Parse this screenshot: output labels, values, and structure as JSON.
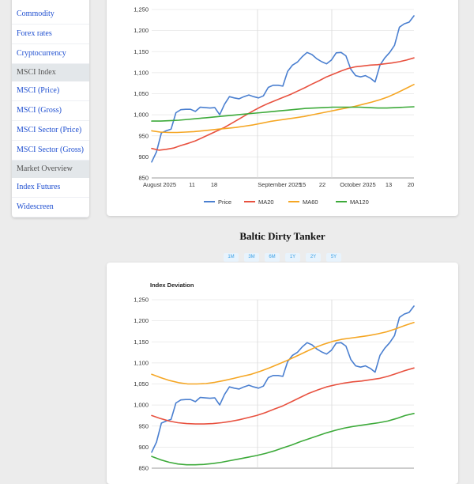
{
  "sidebar": {
    "items": [
      {
        "type": "link",
        "label": "Commodity"
      },
      {
        "type": "link",
        "label": "Forex rates"
      },
      {
        "type": "link",
        "label": "Cryptocurrency"
      },
      {
        "type": "header",
        "label": "MSCI Index"
      },
      {
        "type": "link",
        "label": "MSCI (Price)"
      },
      {
        "type": "link",
        "label": "MSCI (Gross)"
      },
      {
        "type": "link",
        "label": "MSCI Sector (Price)"
      },
      {
        "type": "link",
        "label": "MSCI Sector (Gross)"
      },
      {
        "type": "header",
        "label": "Market Overview"
      },
      {
        "type": "link",
        "label": "Index Futures"
      },
      {
        "type": "link",
        "label": "Widescreen"
      }
    ]
  },
  "section": {
    "title": "Baltic Dirty Tanker",
    "range_buttons": [
      "1M",
      "3M",
      "6M",
      "1Y",
      "2Y",
      "5Y"
    ]
  },
  "colors": {
    "price": "#4a7fd0",
    "ma20": "#e8513f",
    "ma60": "#f5a623",
    "ma120": "#3daa3a",
    "link": "#1f4fd0",
    "range_button_text": "#3aa0e6"
  },
  "chart_data": [
    {
      "type": "line",
      "title": "",
      "y_ticks": [
        "850",
        "900",
        "950",
        "1,000",
        "1,050",
        "1,100",
        "1,150",
        "1,200",
        "1,250"
      ],
      "ylim": [
        850,
        1250
      ],
      "x_ticks": [
        "August 2025",
        "11",
        "18",
        "September 2025",
        "15",
        "22",
        "October 2025",
        "13",
        "20"
      ],
      "x_major_dividers": [
        "September 2025",
        "October 2025"
      ],
      "legend": [
        "Price",
        "MA20",
        "MA60",
        "MA120"
      ],
      "legend_position": "bottom",
      "series": [
        {
          "name": "Price",
          "values": [
            888,
            912,
            957,
            962,
            966,
            1005,
            1012,
            1013,
            1013,
            1008,
            1018,
            1017,
            1016,
            1017,
            1000,
            1025,
            1043,
            1040,
            1038,
            1043,
            1047,
            1043,
            1040,
            1045,
            1065,
            1070,
            1070,
            1068,
            1103,
            1118,
            1125,
            1138,
            1148,
            1143,
            1133,
            1126,
            1121,
            1130,
            1147,
            1148,
            1140,
            1108,
            1093,
            1090,
            1093,
            1087,
            1078,
            1118,
            1135,
            1148,
            1165,
            1208,
            1216,
            1220,
            1235
          ]
        },
        {
          "name": "MA20",
          "values": [
            920,
            916,
            918,
            921,
            927,
            932,
            938,
            946,
            954,
            962,
            970,
            980,
            990,
            1000,
            1010,
            1019,
            1027,
            1034,
            1041,
            1048,
            1056,
            1064,
            1073,
            1081,
            1090,
            1097,
            1104,
            1110,
            1114,
            1116,
            1118,
            1119,
            1121,
            1123,
            1126,
            1130,
            1135
          ]
        },
        {
          "name": "MA60",
          "values": [
            962,
            959,
            958,
            958,
            959,
            960,
            962,
            964,
            966,
            968,
            970,
            973,
            976,
            980,
            984,
            987,
            990,
            993,
            996,
            1000,
            1004,
            1008,
            1012,
            1016,
            1020,
            1025,
            1030,
            1036,
            1043,
            1052,
            1062,
            1072
          ]
        },
        {
          "name": "MA120",
          "values": [
            985,
            985,
            986,
            987,
            989,
            991,
            993,
            995,
            997,
            999,
            1001,
            1003,
            1005,
            1007,
            1009,
            1011,
            1013,
            1015,
            1016,
            1017,
            1018,
            1018,
            1018,
            1018,
            1017,
            1016,
            1016,
            1017,
            1018,
            1019
          ]
        }
      ]
    },
    {
      "type": "line",
      "title": "Index Deviation",
      "y_ticks": [
        "850",
        "900",
        "950",
        "1,000",
        "1,050",
        "1,100",
        "1,150",
        "1,200",
        "1,250"
      ],
      "ylim": [
        850,
        1250
      ],
      "x_ticks": [],
      "x_major_dividers": [
        "September 2025",
        "October 2025"
      ],
      "legend": [],
      "series": [
        {
          "name": "Price",
          "values": [
            888,
            912,
            957,
            962,
            966,
            1005,
            1012,
            1013,
            1013,
            1008,
            1018,
            1017,
            1016,
            1017,
            1000,
            1025,
            1043,
            1040,
            1038,
            1043,
            1047,
            1043,
            1040,
            1045,
            1065,
            1070,
            1070,
            1068,
            1103,
            1118,
            1125,
            1138,
            1148,
            1143,
            1133,
            1126,
            1121,
            1130,
            1147,
            1148,
            1140,
            1108,
            1093,
            1090,
            1093,
            1087,
            1078,
            1118,
            1135,
            1148,
            1165,
            1208,
            1216,
            1220,
            1235
          ]
        },
        {
          "name": "MA20",
          "values": [
            975,
            968,
            962,
            958,
            956,
            955,
            955,
            956,
            958,
            961,
            965,
            970,
            975,
            982,
            990,
            998,
            1008,
            1018,
            1028,
            1036,
            1043,
            1048,
            1052,
            1055,
            1057,
            1060,
            1063,
            1068,
            1075,
            1082,
            1088
          ]
        },
        {
          "name": "MA60",
          "values": [
            1073,
            1065,
            1058,
            1053,
            1050,
            1050,
            1051,
            1054,
            1058,
            1063,
            1068,
            1073,
            1080,
            1088,
            1097,
            1106,
            1116,
            1126,
            1136,
            1144,
            1151,
            1156,
            1159,
            1162,
            1165,
            1169,
            1174,
            1181,
            1189,
            1196
          ]
        },
        {
          "name": "MA120",
          "values": [
            878,
            870,
            864,
            860,
            858,
            858,
            859,
            861,
            864,
            868,
            872,
            876,
            880,
            885,
            891,
            898,
            905,
            913,
            920,
            927,
            934,
            940,
            945,
            949,
            952,
            955,
            958,
            962,
            968,
            975,
            980
          ]
        }
      ]
    }
  ]
}
